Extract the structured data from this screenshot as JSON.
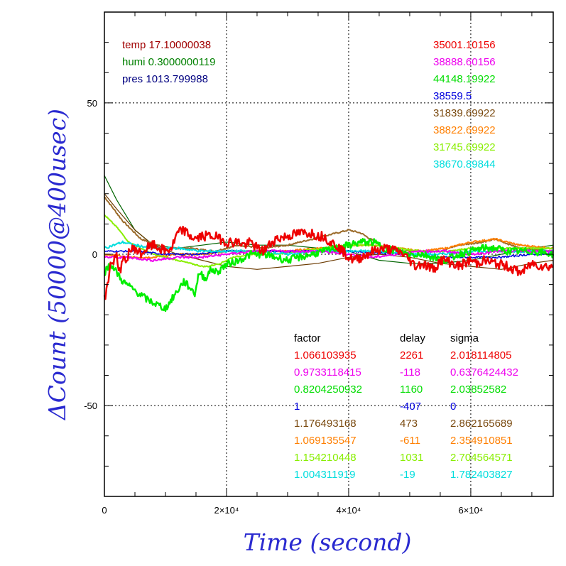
{
  "chart_data": {
    "type": "line",
    "xlabel": "Time (second)",
    "ylabel": "ΔCount (50000@400usec)",
    "xlim": [
      0,
      73500
    ],
    "ylim": [
      -80,
      80
    ],
    "grid": true,
    "colors": {
      "axis_title": "#2a2ad0",
      "grid": "#000000"
    },
    "x_ticks": [
      {
        "value": 0,
        "label": "0"
      },
      {
        "value": 20000,
        "label": "2×10⁴"
      },
      {
        "value": 40000,
        "label": "4×10⁴"
      },
      {
        "value": 60000,
        "label": "6×10⁴"
      }
    ],
    "y_ticks": [
      {
        "value": 50,
        "label": "50"
      },
      {
        "value": 0,
        "label": "0"
      },
      {
        "value": -50,
        "label": "-50"
      }
    ],
    "conditions": [
      {
        "name": "temp",
        "value": "17.10000038",
        "color": "#a00000"
      },
      {
        "name": "humi",
        "value": "0.3000000119",
        "color": "#008000"
      },
      {
        "name": "pres",
        "value": "1013.799988",
        "color": "#000080"
      }
    ],
    "top_values": [
      {
        "text": "35001.10156",
        "color": "#ee0000"
      },
      {
        "text": "38888.60156",
        "color": "#ee00ee"
      },
      {
        "text": "44148.19922",
        "color": "#00dd00"
      },
      {
        "text": "38559.5",
        "color": "#0000dd"
      },
      {
        "text": "31839.69922",
        "color": "#7a4a10"
      },
      {
        "text": "38822.69922",
        "color": "#ff7f00"
      },
      {
        "text": "31745.69922",
        "color": "#88ee00"
      },
      {
        "text": "38670.89844",
        "color": "#00dddd"
      }
    ],
    "table_headers": [
      "factor",
      "delay",
      "sigma"
    ],
    "table_rows": [
      {
        "factor": "1.066103935",
        "delay": "2261",
        "sigma": "2.018114805",
        "color": "#ee0000"
      },
      {
        "factor": "0.9733118415",
        "delay": "-118",
        "sigma": "0.6376424432",
        "color": "#ee00ee"
      },
      {
        "factor": "0.8204250932",
        "delay": "1160",
        "sigma": "2.03852582",
        "color": "#00dd00"
      },
      {
        "factor": "1",
        "delay": "-407",
        "sigma": "0",
        "color": "#0000dd"
      },
      {
        "factor": "1.176493168",
        "delay": "473",
        "sigma": "2.862165689",
        "color": "#7a4a10"
      },
      {
        "factor": "1.069135547",
        "delay": "-611",
        "sigma": "2.354910851",
        "color": "#ff7f00"
      },
      {
        "factor": "1.154210448",
        "delay": "1031",
        "sigma": "2.704564571",
        "color": "#88ee00"
      },
      {
        "factor": "1.004311919",
        "delay": "-19",
        "sigma": "1.782403827",
        "color": "#00dddd"
      }
    ],
    "series": [
      {
        "color": "#006400",
        "width": 1.2,
        "noise": 0,
        "points": [
          [
            0,
            26
          ],
          [
            2000,
            18
          ],
          [
            5000,
            8
          ],
          [
            8000,
            3
          ],
          [
            12000,
            2
          ],
          [
            16000,
            3
          ],
          [
            20000,
            4
          ],
          [
            25000,
            3
          ],
          [
            30000,
            3
          ],
          [
            35000,
            2
          ],
          [
            40000,
            1
          ],
          [
            45000,
            -2
          ],
          [
            50000,
            -3
          ],
          [
            55000,
            -3
          ],
          [
            60000,
            -2
          ],
          [
            65000,
            0
          ],
          [
            70000,
            2
          ],
          [
            73500,
            3
          ]
        ]
      },
      {
        "color": "#6b3a00",
        "width": 1.2,
        "noise": 0,
        "points": [
          [
            0,
            20
          ],
          [
            2000,
            15
          ],
          [
            5000,
            8
          ],
          [
            8000,
            3
          ],
          [
            12000,
            0
          ],
          [
            16000,
            -2
          ],
          [
            20000,
            -4
          ],
          [
            25000,
            -5
          ],
          [
            30000,
            -4
          ],
          [
            35000,
            -3
          ],
          [
            40000,
            -1
          ],
          [
            45000,
            0
          ],
          [
            50000,
            -1
          ],
          [
            55000,
            -3
          ],
          [
            60000,
            -4
          ],
          [
            65000,
            -5
          ],
          [
            70000,
            -3
          ],
          [
            73500,
            -2
          ]
        ]
      },
      {
        "color": "#9b6b2a",
        "width": 2,
        "noise": 0.25,
        "points": [
          [
            0,
            19
          ],
          [
            3000,
            11
          ],
          [
            6000,
            5
          ],
          [
            10000,
            2
          ],
          [
            14000,
            2
          ],
          [
            18000,
            1
          ],
          [
            22000,
            3
          ],
          [
            26000,
            2
          ],
          [
            30000,
            3
          ],
          [
            34000,
            5
          ],
          [
            38000,
            7
          ],
          [
            40000,
            8
          ],
          [
            42000,
            7
          ],
          [
            46000,
            2
          ],
          [
            50000,
            1
          ],
          [
            55000,
            1
          ],
          [
            58000,
            3
          ],
          [
            62000,
            4
          ],
          [
            64000,
            5
          ],
          [
            68000,
            2
          ],
          [
            73500,
            1
          ]
        ]
      },
      {
        "color": "#ff7f00",
        "width": 2,
        "noise": 0.3,
        "points": [
          [
            0,
            0
          ],
          [
            4000,
            -1
          ],
          [
            8000,
            -1
          ],
          [
            12000,
            0
          ],
          [
            16000,
            0
          ],
          [
            20000,
            1
          ],
          [
            25000,
            1
          ],
          [
            30000,
            1
          ],
          [
            35000,
            2
          ],
          [
            40000,
            3
          ],
          [
            44000,
            3
          ],
          [
            48000,
            2
          ],
          [
            52000,
            1
          ],
          [
            56000,
            2
          ],
          [
            60000,
            4
          ],
          [
            64000,
            5
          ],
          [
            68000,
            3
          ],
          [
            73500,
            2
          ]
        ]
      },
      {
        "color": "#88ee00",
        "width": 2,
        "noise": 0.2,
        "points": [
          [
            0,
            13
          ],
          [
            2000,
            9
          ],
          [
            4000,
            4
          ],
          [
            6000,
            2
          ],
          [
            8000,
            0
          ],
          [
            10000,
            -1
          ],
          [
            12000,
            -2
          ],
          [
            14000,
            -3
          ],
          [
            16000,
            -4
          ],
          [
            17000,
            -4
          ],
          [
            19000,
            -3
          ],
          [
            21000,
            -1
          ],
          [
            24000,
            0
          ],
          [
            28000,
            0
          ],
          [
            32000,
            1
          ],
          [
            36000,
            2
          ],
          [
            40000,
            3
          ],
          [
            44000,
            3
          ],
          [
            48000,
            2
          ],
          [
            52000,
            1
          ],
          [
            56000,
            1
          ],
          [
            60000,
            2
          ],
          [
            64000,
            2
          ],
          [
            68000,
            2
          ],
          [
            73500,
            2
          ]
        ]
      },
      {
        "color": "#0000dd",
        "width": 1.5,
        "noise": 0.3,
        "points": [
          [
            0,
            1
          ],
          [
            5000,
            1
          ],
          [
            10000,
            0
          ],
          [
            15000,
            0
          ],
          [
            20000,
            1
          ],
          [
            30000,
            1
          ],
          [
            40000,
            1
          ],
          [
            50000,
            0
          ],
          [
            55000,
            -1
          ],
          [
            60000,
            -1
          ],
          [
            65000,
            -1
          ],
          [
            70000,
            0
          ],
          [
            73500,
            0
          ]
        ]
      },
      {
        "color": "#00dddd",
        "width": 2,
        "noise": 0.4,
        "points": [
          [
            0,
            2
          ],
          [
            1500,
            3
          ],
          [
            3000,
            4
          ],
          [
            5000,
            3
          ],
          [
            8000,
            2
          ],
          [
            12000,
            2
          ],
          [
            16000,
            1
          ],
          [
            20000,
            1
          ],
          [
            25000,
            1
          ],
          [
            30000,
            0
          ],
          [
            35000,
            1
          ],
          [
            40000,
            1
          ],
          [
            45000,
            1
          ],
          [
            50000,
            0
          ],
          [
            55000,
            0
          ],
          [
            60000,
            1
          ],
          [
            65000,
            1
          ],
          [
            70000,
            1
          ],
          [
            73500,
            1
          ]
        ]
      },
      {
        "color": "#ee00ee",
        "width": 2,
        "noise": 0.4,
        "points": [
          [
            0,
            -1
          ],
          [
            4000,
            -1
          ],
          [
            8000,
            -2
          ],
          [
            12000,
            -1
          ],
          [
            16000,
            -1
          ],
          [
            20000,
            0
          ],
          [
            25000,
            1
          ],
          [
            30000,
            1
          ],
          [
            35000,
            1
          ],
          [
            40000,
            0
          ],
          [
            44000,
            -1
          ],
          [
            48000,
            0
          ],
          [
            52000,
            1
          ],
          [
            56000,
            1
          ],
          [
            60000,
            0
          ],
          [
            65000,
            1
          ],
          [
            70000,
            1
          ],
          [
            73500,
            1
          ]
        ]
      },
      {
        "color": "#00ee00",
        "width": 2.5,
        "noise": 1.2,
        "points": [
          [
            0,
            -6
          ],
          [
            1000,
            -3
          ],
          [
            2000,
            -6
          ],
          [
            3000,
            -9
          ],
          [
            5000,
            -12
          ],
          [
            7000,
            -15
          ],
          [
            9000,
            -17
          ],
          [
            10000,
            -18
          ],
          [
            11000,
            -15
          ],
          [
            12000,
            -12
          ],
          [
            13000,
            -9
          ],
          [
            14000,
            -11
          ],
          [
            14800,
            -13
          ],
          [
            15500,
            -6
          ],
          [
            16500,
            -8
          ],
          [
            17500,
            -5
          ],
          [
            18500,
            -6
          ],
          [
            19500,
            -4
          ],
          [
            20500,
            -3
          ],
          [
            22000,
            -2
          ],
          [
            24000,
            0
          ],
          [
            26000,
            0
          ],
          [
            28000,
            -1
          ],
          [
            30000,
            -2
          ],
          [
            32000,
            -1
          ],
          [
            34000,
            0
          ],
          [
            36000,
            1
          ],
          [
            38000,
            2
          ],
          [
            40000,
            3
          ],
          [
            42000,
            4
          ],
          [
            44000,
            4
          ],
          [
            46000,
            2
          ],
          [
            48000,
            1
          ],
          [
            50000,
            0
          ],
          [
            52000,
            0
          ],
          [
            54000,
            -1
          ],
          [
            56000,
            -2
          ],
          [
            58000,
            0
          ],
          [
            60000,
            1
          ],
          [
            62000,
            2
          ],
          [
            64000,
            2
          ],
          [
            66000,
            1
          ],
          [
            68000,
            1
          ],
          [
            70000,
            1
          ],
          [
            73500,
            0
          ]
        ]
      },
      {
        "color": "#ee0000",
        "width": 2.5,
        "noise": 1.6,
        "points": [
          [
            0,
            -15
          ],
          [
            500,
            -10
          ],
          [
            1000,
            -4
          ],
          [
            1500,
            -2
          ],
          [
            2000,
            0
          ],
          [
            2500,
            -6
          ],
          [
            3000,
            -2
          ],
          [
            3500,
            -3
          ],
          [
            4000,
            1
          ],
          [
            5000,
            2
          ],
          [
            6000,
            0
          ],
          [
            7000,
            2
          ],
          [
            8000,
            3
          ],
          [
            9000,
            2
          ],
          [
            10000,
            1
          ],
          [
            11000,
            2
          ],
          [
            12000,
            7
          ],
          [
            13000,
            8
          ],
          [
            14000,
            6
          ],
          [
            15000,
            5
          ],
          [
            16000,
            6
          ],
          [
            18000,
            6
          ],
          [
            20000,
            4
          ],
          [
            22000,
            4
          ],
          [
            23000,
            3
          ],
          [
            24000,
            4
          ],
          [
            25000,
            2
          ],
          [
            26000,
            1
          ],
          [
            27000,
            3
          ],
          [
            28000,
            5
          ],
          [
            30000,
            6
          ],
          [
            32000,
            7
          ],
          [
            34000,
            7
          ],
          [
            35000,
            6
          ],
          [
            36000,
            6
          ],
          [
            37000,
            4
          ],
          [
            38000,
            3
          ],
          [
            39000,
            1
          ],
          [
            40000,
            -1
          ],
          [
            41000,
            -2
          ],
          [
            42000,
            -1
          ],
          [
            43000,
            0
          ],
          [
            44000,
            1
          ],
          [
            46000,
            2
          ],
          [
            48000,
            1
          ],
          [
            49000,
            0
          ],
          [
            50000,
            -2
          ],
          [
            51000,
            -4
          ],
          [
            52000,
            -3
          ],
          [
            53000,
            -4
          ],
          [
            54000,
            -5
          ],
          [
            55000,
            -2
          ],
          [
            56000,
            -2
          ],
          [
            57000,
            -3
          ],
          [
            58000,
            -4
          ],
          [
            60000,
            -2
          ],
          [
            61000,
            -3
          ],
          [
            62000,
            -2
          ],
          [
            64000,
            -3
          ],
          [
            66000,
            -4
          ],
          [
            67000,
            -5
          ],
          [
            68000,
            -6
          ],
          [
            69000,
            -5
          ],
          [
            70000,
            -3
          ],
          [
            72000,
            -4
          ],
          [
            73500,
            -4
          ]
        ]
      }
    ]
  }
}
